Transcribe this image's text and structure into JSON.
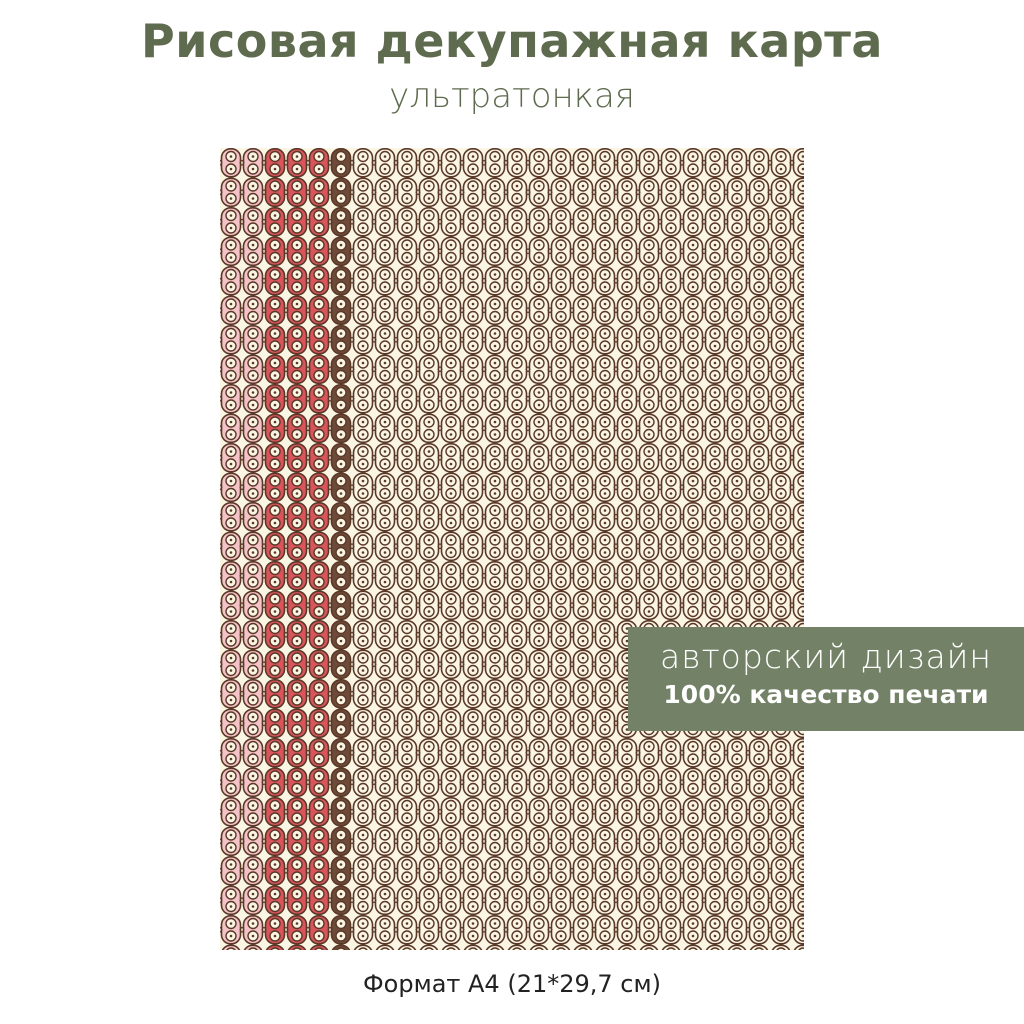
{
  "header": {
    "title": "Рисовая декупажная карта",
    "subtitle": "ультратонкая"
  },
  "badge": {
    "line1": "авторский дизайн",
    "line2": "100% качество печати"
  },
  "footer": {
    "format": "Формат А4 (21*29,7 см)"
  },
  "colors": {
    "title": "#5e6b4e",
    "badge": "#738266",
    "pink": "#f4c3c7",
    "red": "#d9545b",
    "brown": "#6e4a38",
    "cream": "#fbf5e3",
    "outline": "#5a3828"
  }
}
